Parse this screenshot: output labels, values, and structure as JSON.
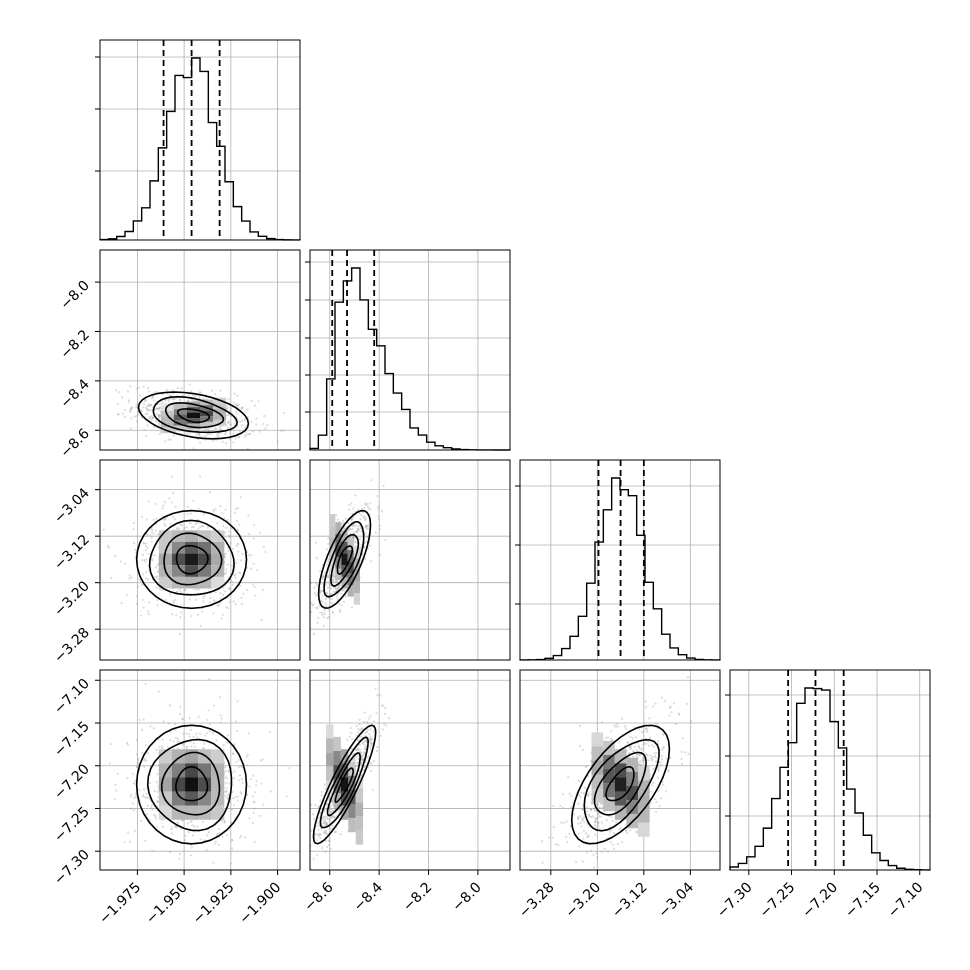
{
  "chart_data": {
    "type": "corner",
    "parameters": [
      {
        "range": [
          -1.995,
          -1.888
        ],
        "ticks": [
          -1.975,
          -1.95,
          -1.925,
          -1.9
        ],
        "tick_labels": [
          "−1.975",
          "−1.950",
          "−1.925",
          "−1.900"
        ],
        "quantiles": [
          -1.961,
          -1.946,
          -1.931
        ],
        "mode": -1.946,
        "sigma": 0.0135,
        "hist_yticks_frac": [
          0.345,
          0.655,
          0.915
        ]
      },
      {
        "range": [
          -8.68,
          -7.87
        ],
        "ticks": [
          -8.6,
          -8.4,
          -8.2,
          -8.0
        ],
        "tick_labels": [
          "−8.6",
          "−8.4",
          "−8.2",
          "−8.0"
        ],
        "quantiles": [
          -8.59,
          -8.53,
          -8.42
        ],
        "mode": -8.54,
        "sigma": 0.04,
        "sigma_hi": 0.14,
        "hist_yticks_frac": [
          0.19,
          0.375,
          0.56,
          0.75,
          0.94
        ]
      },
      {
        "range": [
          -3.333,
          -2.989
        ],
        "ticks": [
          -3.28,
          -3.2,
          -3.12,
          -3.04
        ],
        "tick_labels": [
          "−3.28",
          "−3.20",
          "−3.12",
          "−3.04"
        ],
        "quantiles": [
          -3.198,
          -3.16,
          -3.12
        ],
        "mode": -3.16,
        "sigma": 0.04,
        "hist_yticks_frac": [
          0.28,
          0.575,
          0.87
        ]
      },
      {
        "range": [
          -7.322,
          -7.088
        ],
        "ticks": [
          -7.3,
          -7.25,
          -7.2,
          -7.15,
          -7.1
        ],
        "tick_labels": [
          "−7.30",
          "−7.25",
          "−7.20",
          "−7.15",
          "−7.10"
        ],
        "quantiles": [
          -7.254,
          -7.222,
          -7.189
        ],
        "mode": -7.222,
        "sigma": 0.033,
        "hist_yticks_frac": [
          0.27,
          0.57,
          0.875
        ]
      }
    ],
    "pairs": [
      {
        "row": 1,
        "col": 0,
        "center": [
          -1.945,
          -8.54
        ],
        "spread": [
          0.014,
          0.045
        ],
        "corr": -0.35
      },
      {
        "row": 2,
        "col": 0,
        "center": [
          -1.946,
          -3.16
        ],
        "spread": [
          0.014,
          0.04
        ],
        "corr": 0.0
      },
      {
        "row": 2,
        "col": 1,
        "center": [
          -8.54,
          -3.16
        ],
        "spread": [
          0.05,
          0.04
        ],
        "corr": 0.7
      },
      {
        "row": 3,
        "col": 0,
        "center": [
          -1.946,
          -7.222
        ],
        "spread": [
          0.014,
          0.033
        ],
        "corr": 0.0
      },
      {
        "row": 3,
        "col": 1,
        "center": [
          -8.54,
          -7.222
        ],
        "spread": [
          0.06,
          0.033
        ],
        "corr": 0.88
      },
      {
        "row": 3,
        "col": 2,
        "center": [
          -3.16,
          -7.222
        ],
        "spread": [
          0.04,
          0.033
        ],
        "corr": 0.6
      }
    ],
    "grid": true,
    "dashed_quantiles": [
      0.16,
      0.5,
      0.84
    ]
  }
}
